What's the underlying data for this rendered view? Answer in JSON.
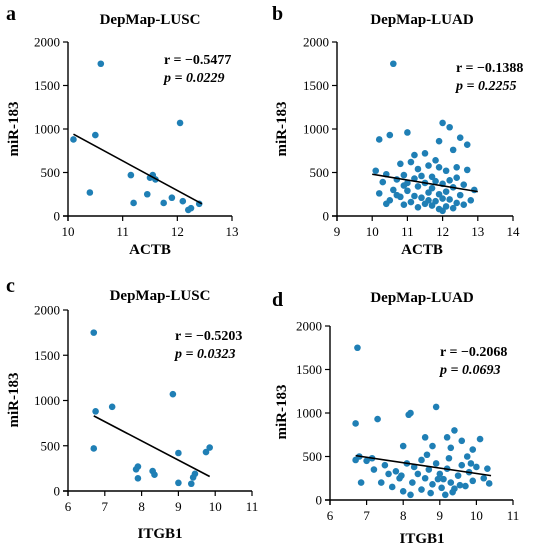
{
  "colors": {
    "point": "#1f7fb5",
    "line": "#000000"
  },
  "chart_data": [
    {
      "panel": "a",
      "type": "scatter",
      "title": "DepMap-LUSC",
      "xlabel": "ACTB",
      "ylabel": "miR-183",
      "xlim": [
        10,
        13
      ],
      "ylim": [
        0,
        2000
      ],
      "xticks": [
        10,
        11,
        12,
        13
      ],
      "yticks": [
        0,
        500,
        1000,
        1500,
        2000
      ],
      "r_text": "r = −0.5477",
      "p_text": "p = 0.0229",
      "regression": {
        "x": [
          10.1,
          12.45
        ],
        "y": [
          940,
          140
        ]
      },
      "points": [
        [
          10.1,
          880
        ],
        [
          10.4,
          270
        ],
        [
          10.5,
          930
        ],
        [
          10.6,
          1750
        ],
        [
          11.15,
          470
        ],
        [
          11.2,
          150
        ],
        [
          11.45,
          250
        ],
        [
          11.5,
          440
        ],
        [
          11.55,
          470
        ],
        [
          11.6,
          420
        ],
        [
          11.75,
          150
        ],
        [
          11.9,
          210
        ],
        [
          12.05,
          1070
        ],
        [
          12.1,
          170
        ],
        [
          12.2,
          70
        ],
        [
          12.25,
          90
        ],
        [
          12.4,
          140
        ]
      ]
    },
    {
      "panel": "b",
      "type": "scatter",
      "title": "DepMap-LUAD",
      "xlabel": "ACTB",
      "ylabel": "miR-183",
      "xlim": [
        9,
        14
      ],
      "ylim": [
        0,
        2000
      ],
      "xticks": [
        9,
        10,
        11,
        12,
        13,
        14
      ],
      "yticks": [
        0,
        500,
        1000,
        1500,
        2000
      ],
      "r_text": "r = −0.1388",
      "p_text": "p = 0.2255",
      "regression": {
        "x": [
          10,
          13
        ],
        "y": [
          480,
          280
        ]
      },
      "points": [
        [
          10.6,
          1750
        ],
        [
          12.0,
          1070
        ],
        [
          12.2,
          1020
        ],
        [
          11.0,
          960
        ],
        [
          10.2,
          880
        ],
        [
          10.5,
          930
        ],
        [
          12.5,
          900
        ],
        [
          11.9,
          860
        ],
        [
          12.3,
          760
        ],
        [
          11.5,
          720
        ],
        [
          12.7,
          530
        ],
        [
          11.1,
          620
        ],
        [
          11.6,
          580
        ],
        [
          11.9,
          560
        ],
        [
          10.8,
          600
        ],
        [
          12.1,
          520
        ],
        [
          11.3,
          540
        ],
        [
          10.4,
          480
        ],
        [
          10.1,
          520
        ],
        [
          10.9,
          470
        ],
        [
          11.4,
          460
        ],
        [
          11.7,
          450
        ],
        [
          12.4,
          440
        ],
        [
          11.2,
          430
        ],
        [
          10.7,
          420
        ],
        [
          12.2,
          410
        ],
        [
          11.8,
          400
        ],
        [
          10.3,
          390
        ],
        [
          11.5,
          380
        ],
        [
          12.0,
          370
        ],
        [
          12.6,
          360
        ],
        [
          10.9,
          350
        ],
        [
          11.3,
          340
        ],
        [
          12.3,
          330
        ],
        [
          11.7,
          320
        ],
        [
          12.9,
          300
        ],
        [
          10.6,
          300
        ],
        [
          11.0,
          290
        ],
        [
          12.1,
          280
        ],
        [
          11.6,
          270
        ],
        [
          10.2,
          260
        ],
        [
          11.9,
          250
        ],
        [
          12.5,
          240
        ],
        [
          11.2,
          230
        ],
        [
          10.8,
          220
        ],
        [
          11.4,
          210
        ],
        [
          12.0,
          200
        ],
        [
          12.2,
          190
        ],
        [
          10.5,
          180
        ],
        [
          11.8,
          170
        ],
        [
          11.1,
          160
        ],
        [
          12.4,
          150
        ],
        [
          11.5,
          140
        ],
        [
          10.9,
          130
        ],
        [
          11.7,
          120
        ],
        [
          12.1,
          110
        ],
        [
          12.3,
          90
        ],
        [
          11.9,
          80
        ],
        [
          11.3,
          100
        ],
        [
          12.0,
          60
        ],
        [
          10.4,
          140
        ],
        [
          12.6,
          130
        ],
        [
          11.6,
          180
        ],
        [
          10.7,
          240
        ],
        [
          12.8,
          180
        ],
        [
          11.0,
          380
        ],
        [
          12.4,
          560
        ],
        [
          11.8,
          640
        ],
        [
          11.2,
          700
        ],
        [
          12.7,
          820
        ]
      ]
    },
    {
      "panel": "c",
      "type": "scatter",
      "title": "DepMap-LUSC",
      "xlabel": "ITGB1",
      "ylabel": "miR-183",
      "xlim": [
        6,
        11
      ],
      "ylim": [
        0,
        2000
      ],
      "xticks": [
        6,
        7,
        8,
        9,
        10,
        11
      ],
      "yticks": [
        0,
        500,
        1000,
        1500,
        2000
      ],
      "r_text": "r = −0.5203",
      "p_text": "p = 0.0323",
      "regression": {
        "x": [
          6.7,
          9.85
        ],
        "y": [
          830,
          160
        ]
      },
      "points": [
        [
          6.7,
          1750
        ],
        [
          6.7,
          470
        ],
        [
          6.75,
          880
        ],
        [
          7.2,
          930
        ],
        [
          7.85,
          240
        ],
        [
          7.9,
          270
        ],
        [
          7.9,
          140
        ],
        [
          8.3,
          220
        ],
        [
          8.35,
          180
        ],
        [
          8.85,
          1070
        ],
        [
          9.0,
          420
        ],
        [
          9.0,
          90
        ],
        [
          9.35,
          80
        ],
        [
          9.4,
          150
        ],
        [
          9.45,
          190
        ],
        [
          9.75,
          430
        ],
        [
          9.85,
          480
        ]
      ]
    },
    {
      "panel": "d",
      "type": "scatter",
      "title": "DepMap-LUAD",
      "xlabel": "ITGB1",
      "ylabel": "miR-183",
      "xlim": [
        6,
        11
      ],
      "ylim": [
        0,
        2000
      ],
      "xticks": [
        6,
        7,
        8,
        9,
        10,
        11
      ],
      "yticks": [
        0,
        500,
        1000,
        1500,
        2000
      ],
      "r_text": "r = −0.2068",
      "p_text": "p = 0.0693",
      "regression": {
        "x": [
          6.7,
          10.4
        ],
        "y": [
          510,
          280
        ]
      },
      "points": [
        [
          6.75,
          1750
        ],
        [
          6.7,
          880
        ],
        [
          7.3,
          930
        ],
        [
          8.2,
          1000
        ],
        [
          8.15,
          980
        ],
        [
          8.9,
          1070
        ],
        [
          9.4,
          800
        ],
        [
          9.2,
          720
        ],
        [
          8.6,
          720
        ],
        [
          9.6,
          680
        ],
        [
          10.1,
          700
        ],
        [
          8.0,
          620
        ],
        [
          8.8,
          620
        ],
        [
          9.3,
          600
        ],
        [
          9.9,
          580
        ],
        [
          6.8,
          500
        ],
        [
          7.0,
          450
        ],
        [
          6.7,
          460
        ],
        [
          7.2,
          350
        ],
        [
          7.5,
          400
        ],
        [
          7.6,
          300
        ],
        [
          7.8,
          330
        ],
        [
          7.9,
          250
        ],
        [
          8.1,
          420
        ],
        [
          8.3,
          380
        ],
        [
          8.4,
          300
        ],
        [
          8.5,
          460
        ],
        [
          8.6,
          250
        ],
        [
          8.7,
          350
        ],
        [
          8.8,
          180
        ],
        [
          8.9,
          420
        ],
        [
          9.0,
          300
        ],
        [
          9.1,
          240
        ],
        [
          9.2,
          360
        ],
        [
          9.3,
          200
        ],
        [
          9.4,
          130
        ],
        [
          9.5,
          280
        ],
        [
          9.6,
          400
        ],
        [
          9.7,
          160
        ],
        [
          9.8,
          320
        ],
        [
          9.9,
          220
        ],
        [
          10.0,
          380
        ],
        [
          10.2,
          250
        ],
        [
          10.3,
          360
        ],
        [
          10.35,
          190
        ],
        [
          7.4,
          200
        ],
        [
          7.7,
          150
        ],
        [
          8.0,
          100
        ],
        [
          8.2,
          60
        ],
        [
          8.5,
          120
        ],
        [
          8.75,
          80
        ],
        [
          9.05,
          140
        ],
        [
          9.35,
          90
        ],
        [
          9.55,
          170
        ],
        [
          9.15,
          60
        ],
        [
          8.25,
          200
        ],
        [
          7.95,
          280
        ],
        [
          8.65,
          520
        ],
        [
          9.25,
          480
        ],
        [
          9.75,
          500
        ],
        [
          6.85,
          200
        ],
        [
          7.15,
          480
        ],
        [
          8.95,
          240
        ],
        [
          9.85,
          420
        ]
      ]
    }
  ]
}
